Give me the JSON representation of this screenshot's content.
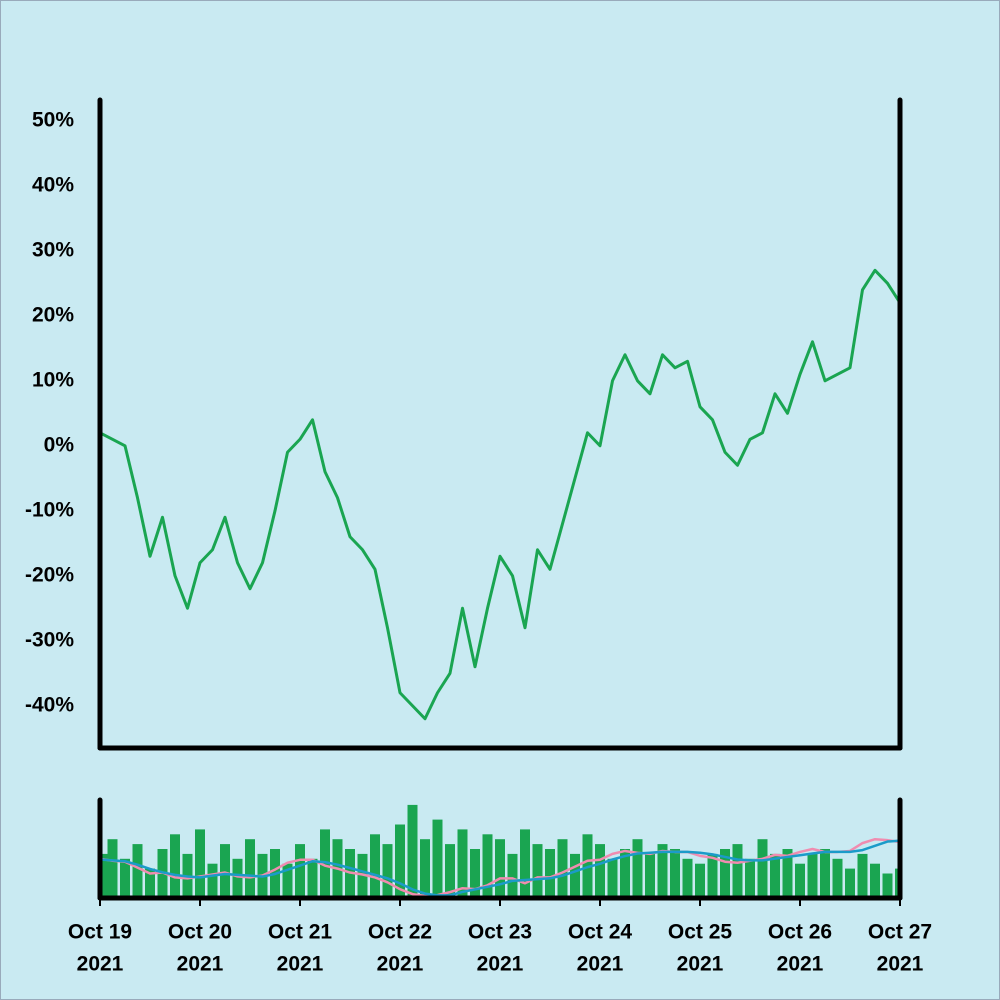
{
  "chart_data": [
    {
      "type": "line",
      "x": [
        "2021-10-19T00:00",
        "2021-10-19T03:00",
        "2021-10-19T06:00",
        "2021-10-19T09:00",
        "2021-10-19T12:00",
        "2021-10-19T15:00",
        "2021-10-19T18:00",
        "2021-10-19T21:00",
        "2021-10-20T00:00",
        "2021-10-20T03:00",
        "2021-10-20T06:00",
        "2021-10-20T09:00",
        "2021-10-20T12:00",
        "2021-10-20T15:00",
        "2021-10-20T18:00",
        "2021-10-20T21:00",
        "2021-10-21T00:00",
        "2021-10-21T03:00",
        "2021-10-21T06:00",
        "2021-10-21T09:00",
        "2021-10-21T12:00",
        "2021-10-21T15:00",
        "2021-10-21T18:00",
        "2021-10-21T21:00",
        "2021-10-22T00:00",
        "2021-10-22T03:00",
        "2021-10-22T06:00",
        "2021-10-22T09:00",
        "2021-10-22T12:00",
        "2021-10-22T15:00",
        "2021-10-22T18:00",
        "2021-10-22T21:00",
        "2021-10-23T00:00",
        "2021-10-23T03:00",
        "2021-10-23T06:00",
        "2021-10-23T09:00",
        "2021-10-23T12:00",
        "2021-10-23T15:00",
        "2021-10-23T18:00",
        "2021-10-23T21:00",
        "2021-10-24T00:00",
        "2021-10-24T03:00",
        "2021-10-24T06:00",
        "2021-10-24T09:00",
        "2021-10-24T12:00",
        "2021-10-24T15:00",
        "2021-10-24T18:00",
        "2021-10-24T21:00",
        "2021-10-25T00:00",
        "2021-10-25T03:00",
        "2021-10-25T06:00",
        "2021-10-25T09:00",
        "2021-10-25T12:00",
        "2021-10-25T15:00",
        "2021-10-25T18:00",
        "2021-10-25T21:00",
        "2021-10-26T00:00",
        "2021-10-26T03:00",
        "2021-10-26T06:00",
        "2021-10-26T09:00",
        "2021-10-26T12:00",
        "2021-10-26T15:00",
        "2021-10-26T18:00",
        "2021-10-26T21:00",
        "2021-10-27T00:00"
      ],
      "series": [
        {
          "color": "#1aa551",
          "values": [
            2,
            1,
            0,
            -8,
            -17,
            -11,
            -20,
            -25,
            -18,
            -16,
            -11,
            -18,
            -22,
            -18,
            -10,
            -1,
            1,
            4,
            -4,
            -8,
            -14,
            -16,
            -19,
            -28,
            -38,
            -40,
            -42,
            -38,
            -35,
            -25,
            -34,
            -25,
            -17,
            -20,
            -28,
            -16,
            -19,
            -12,
            -5,
            2,
            0,
            10,
            14,
            10,
            8,
            14,
            12,
            13,
            6,
            4,
            -1,
            -3,
            1,
            2,
            8,
            5,
            11,
            16,
            10,
            11,
            12,
            24,
            27,
            25,
            22
          ]
        }
      ],
      "xlim": [
        "2021-10-19T00:00",
        "2021-10-27T00:00"
      ],
      "ylim": [
        -46.5,
        53.2
      ],
      "yticks": [
        {
          "value": -40,
          "label": "-40%"
        },
        {
          "value": -30,
          "label": "-30%"
        },
        {
          "value": -20,
          "label": "-20%"
        },
        {
          "value": -10,
          "label": "-10%"
        },
        {
          "value": 0,
          "label": "0%"
        },
        {
          "value": 10,
          "label": "10%"
        },
        {
          "value": 20,
          "label": "20%"
        },
        {
          "value": 30,
          "label": "30%"
        },
        {
          "value": 40,
          "label": "40%"
        },
        {
          "value": 50,
          "label": "50%"
        }
      ]
    },
    {
      "type": "bar",
      "x": [
        "2021-10-19T00:00",
        "2021-10-19T03:00",
        "2021-10-19T06:00",
        "2021-10-19T09:00",
        "2021-10-19T12:00",
        "2021-10-19T15:00",
        "2021-10-19T18:00",
        "2021-10-19T21:00",
        "2021-10-20T00:00",
        "2021-10-20T03:00",
        "2021-10-20T06:00",
        "2021-10-20T09:00",
        "2021-10-20T12:00",
        "2021-10-20T15:00",
        "2021-10-20T18:00",
        "2021-10-20T21:00",
        "2021-10-21T00:00",
        "2021-10-21T03:00",
        "2021-10-21T06:00",
        "2021-10-21T09:00",
        "2021-10-21T12:00",
        "2021-10-21T15:00",
        "2021-10-21T18:00",
        "2021-10-21T21:00",
        "2021-10-22T00:00",
        "2021-10-22T03:00",
        "2021-10-22T06:00",
        "2021-10-22T09:00",
        "2021-10-22T12:00",
        "2021-10-22T15:00",
        "2021-10-22T18:00",
        "2021-10-22T21:00",
        "2021-10-23T00:00",
        "2021-10-23T03:00",
        "2021-10-23T06:00",
        "2021-10-23T09:00",
        "2021-10-23T12:00",
        "2021-10-23T15:00",
        "2021-10-23T18:00",
        "2021-10-23T21:00",
        "2021-10-24T00:00",
        "2021-10-24T03:00",
        "2021-10-24T06:00",
        "2021-10-24T09:00",
        "2021-10-24T12:00",
        "2021-10-24T15:00",
        "2021-10-24T18:00",
        "2021-10-24T21:00",
        "2021-10-25T00:00",
        "2021-10-25T03:00",
        "2021-10-25T06:00",
        "2021-10-25T09:00",
        "2021-10-25T12:00",
        "2021-10-25T15:00",
        "2021-10-25T18:00",
        "2021-10-25T21:00",
        "2021-10-26T00:00",
        "2021-10-26T03:00",
        "2021-10-26T06:00",
        "2021-10-26T09:00",
        "2021-10-26T12:00",
        "2021-10-26T15:00",
        "2021-10-26T18:00",
        "2021-10-26T21:00",
        "2021-10-27T00:00"
      ],
      "series": [
        {
          "type": "bar",
          "color": "#1aa551",
          "values": [
            45,
            60,
            40,
            55,
            30,
            50,
            65,
            45,
            70,
            35,
            55,
            40,
            60,
            45,
            50,
            35,
            55,
            40,
            70,
            60,
            50,
            45,
            65,
            55,
            75,
            95,
            60,
            80,
            55,
            70,
            50,
            65,
            60,
            45,
            70,
            55,
            50,
            60,
            45,
            65,
            55,
            40,
            50,
            60,
            45,
            55,
            50,
            40,
            35,
            45,
            50,
            55,
            40,
            60,
            45,
            50,
            35,
            45,
            50,
            40,
            30,
            45,
            35,
            25,
            30
          ]
        },
        {
          "type": "line",
          "color": "#f08cb0",
          "values": [
            40,
            38,
            37,
            31,
            25,
            26,
            21,
            20,
            22,
            24,
            26,
            22,
            21,
            23,
            29,
            36,
            39,
            39,
            33,
            30,
            26,
            24,
            21,
            16,
            9,
            4,
            2,
            3,
            6,
            10,
            9,
            13,
            20,
            20,
            15,
            21,
            21,
            26,
            32,
            38,
            39,
            45,
            48,
            46,
            45,
            48,
            47,
            47,
            43,
            41,
            37,
            36,
            38,
            40,
            44,
            43,
            47,
            50,
            47,
            47,
            48,
            56,
            60,
            59,
            57
          ]
        },
        {
          "type": "line",
          "color": "#1b9bc9",
          "values": [
            39.3,
            38.4,
            37.5,
            34,
            29.6,
            26.2,
            23.6,
            21.9,
            21,
            22.8,
            24.5,
            23.6,
            22.8,
            21.9,
            24.5,
            28.8,
            33.1,
            37.5,
            36.6,
            34,
            30.6,
            27.1,
            23.6,
            20.1,
            14.9,
            8.8,
            4.5,
            2.7,
            2.7,
            6.2,
            8.8,
            11.4,
            14,
            17.5,
            18.4,
            19.3,
            20.1,
            22.8,
            27.1,
            31.5,
            34.9,
            39.3,
            42.8,
            45.4,
            46.2,
            47.1,
            47.1,
            47.1,
            46.2,
            44.5,
            41.9,
            39.3,
            38.4,
            38.4,
            40.2,
            41.9,
            43.6,
            45.4,
            47.1,
            47.1,
            47.1,
            48.9,
            53.2,
            57.6,
            58.5
          ]
        }
      ],
      "xlim": [
        "2021-10-19T00:00",
        "2021-10-27T00:00"
      ],
      "ylim": [
        0,
        100
      ],
      "xticks": [
        {
          "value": "2021-10-19T00:00",
          "label": [
            "Oct 19",
            "2021"
          ]
        },
        {
          "value": "2021-10-20T00:00",
          "label": [
            "Oct 20",
            "2021"
          ]
        },
        {
          "value": "2021-10-21T00:00",
          "label": [
            "Oct 21",
            "2021"
          ]
        },
        {
          "value": "2021-10-22T00:00",
          "label": [
            "Oct 22",
            "2021"
          ]
        },
        {
          "value": "2021-10-23T00:00",
          "label": [
            "Oct 23",
            "2021"
          ]
        },
        {
          "value": "2021-10-24T00:00",
          "label": [
            "Oct 24",
            "2021"
          ]
        },
        {
          "value": "2021-10-25T00:00",
          "label": [
            "Oct 25",
            "2021"
          ]
        },
        {
          "value": "2021-10-26T00:00",
          "label": [
            "Oct 26",
            "2021"
          ]
        },
        {
          "value": "2021-10-27T00:00",
          "label": [
            "Oct 27",
            "2021"
          ]
        }
      ]
    }
  ]
}
